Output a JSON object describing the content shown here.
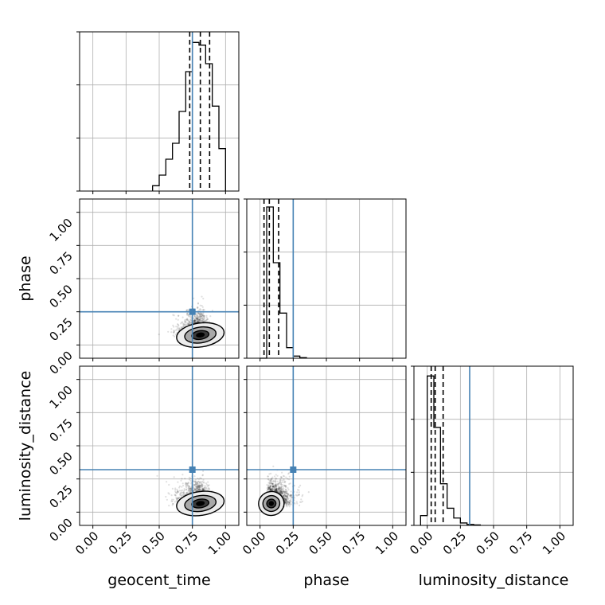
{
  "chart_data": {
    "type": "corner",
    "parameters": [
      "geocent_time",
      "phase",
      "luminosity_distance"
    ],
    "ticks": [
      "0.00",
      "0.25",
      "0.50",
      "0.75",
      "1.00"
    ],
    "axis_range": [
      -0.1,
      1.1
    ],
    "truths": {
      "geocent_time": 0.75,
      "phase": 0.25,
      "luminosity_distance": 0.32
    },
    "quantiles": {
      "geocent_time": [
        0.73,
        0.81,
        0.88
      ],
      "phase": [
        0.03,
        0.07,
        0.14
      ],
      "luminosity_distance": [
        0.03,
        0.06,
        0.12
      ]
    },
    "histograms": {
      "bin_width": 0.05,
      "geocent_time": {
        "edges_start": 0.45,
        "counts": [
          2,
          6,
          12,
          18,
          30,
          45,
          56,
          55,
          48,
          32,
          16
        ],
        "ylim": [
          0,
          60
        ]
      },
      "phase": {
        "edges_start": 0.0,
        "counts": [
          0,
          57,
          36,
          17,
          4,
          0.8,
          0.2
        ],
        "ylim": [
          0,
          60
        ]
      },
      "luminosity_distance": {
        "edges_start": -0.05,
        "counts": [
          4,
          61,
          40,
          17,
          7,
          3,
          1,
          0.4,
          0.2
        ],
        "ylim": [
          0,
          65
        ]
      }
    },
    "grid": true
  },
  "labels": {
    "x": {
      "geocent_time": "geocent_time",
      "phase": "phase",
      "luminosity_distance": "luminosity_distance"
    },
    "y": {
      "phase": "phase",
      "luminosity_distance": "luminosity_distance"
    }
  },
  "colors": {
    "truth": "#4682b4",
    "hist": "#000000",
    "grid": "#b0b0b0",
    "samples": "#000000"
  }
}
